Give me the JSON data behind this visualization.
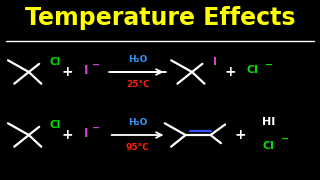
{
  "background_color": "#000000",
  "title": "Temperature Effects",
  "title_color": "#FFFF00",
  "title_fontsize": 17,
  "separator_color": "#FFFFFF",
  "reaction1": {
    "temp": "25°C",
    "temp_color": "#FF2200",
    "arrow_label": "H₂O",
    "arrow_label_color": "#3399FF",
    "reactant_cl_color": "#00DD00",
    "reactant_i_color": "#CC44CC",
    "product_i_color": "#CC44CC",
    "product_cl_color": "#00DD00",
    "skeleton_color": "#FFFFFF"
  },
  "reaction2": {
    "temp": "95°C",
    "temp_color": "#FF2200",
    "arrow_label": "H₂O",
    "arrow_label_color": "#3399FF",
    "reactant_cl_color": "#00DD00",
    "reactant_i_color": "#CC44CC",
    "product_double_color": "#3355FF",
    "product_hi_color": "#FFFFFF",
    "product_cl_color": "#00DD00",
    "skeleton_color": "#FFFFFF"
  }
}
